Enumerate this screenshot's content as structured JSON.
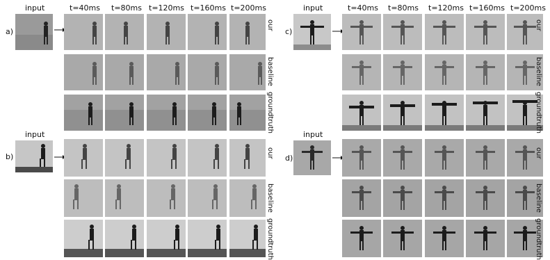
{
  "time_labels": [
    "t=40ms",
    "t=80ms",
    "t=120ms",
    "t=160ms",
    "t=200ms"
  ],
  "input_label": "input",
  "row_labels": [
    "our",
    "baseline",
    "groundtruth"
  ],
  "panels": [
    {
      "letter": "a)"
    },
    {
      "letter": "b)"
    },
    {
      "letter": "c)"
    },
    {
      "letter": "d)"
    }
  ]
}
